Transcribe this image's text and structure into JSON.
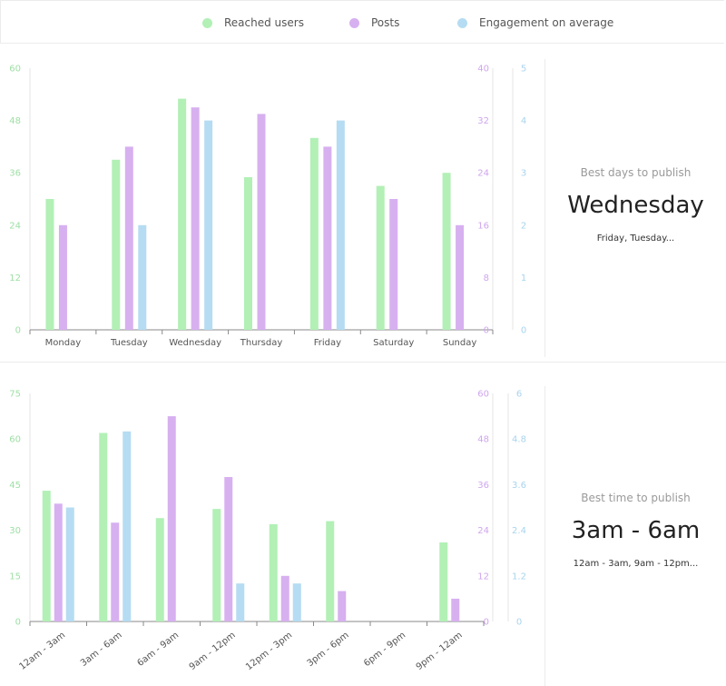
{
  "legend": [
    {
      "label": "Reached users",
      "color": "#b2f0b6"
    },
    {
      "label": "Posts",
      "color": "#d7b0f0"
    },
    {
      "label": "Engagement on average",
      "color": "#b5dcf2"
    }
  ],
  "best_days": {
    "label": "Best days to publish",
    "main": "Wednesday",
    "sub": "Friday, Tuesday..."
  },
  "best_time": {
    "label": "Best time to publish",
    "main": "3am - 6am",
    "sub": "12am - 3am, 9am - 12pm..."
  },
  "chart_data": [
    {
      "type": "bar",
      "categories": [
        "Monday",
        "Tuesday",
        "Wednesday",
        "Thursday",
        "Friday",
        "Saturday",
        "Sunday"
      ],
      "series": [
        {
          "name": "Reached users",
          "axis": "left",
          "color": "#b2f0b6",
          "values": [
            30,
            39,
            53,
            35,
            44,
            33,
            36
          ]
        },
        {
          "name": "Posts",
          "axis": "right1",
          "color": "#d7b0f0",
          "values": [
            16,
            28,
            34,
            33,
            28,
            20,
            16
          ]
        },
        {
          "name": "Engagement on average",
          "axis": "right2",
          "color": "#b5dcf2",
          "values": [
            0,
            2,
            4,
            0,
            4,
            0,
            0
          ]
        }
      ],
      "axes": {
        "left": {
          "min": 0,
          "max": 60,
          "ticks": [
            "0",
            "12",
            "24",
            "36",
            "48",
            "60"
          ],
          "color": "#9fe0a5"
        },
        "right1": {
          "min": 0,
          "max": 40,
          "ticks": [
            "0",
            "8",
            "16",
            "24",
            "32",
            "40"
          ],
          "color": "#cfa6ee"
        },
        "right2": {
          "min": 0,
          "max": 5,
          "ticks": [
            "0",
            "1",
            "2",
            "3",
            "4",
            "5"
          ],
          "color": "#a9d4ee"
        }
      },
      "legend_position": "top",
      "grid": false
    },
    {
      "type": "bar",
      "categories": [
        "12am - 3am",
        "3am - 6am",
        "6am - 9am",
        "9am - 12pm",
        "12pm - 3pm",
        "3pm - 6pm",
        "6pm - 9pm",
        "9pm - 12am"
      ],
      "series": [
        {
          "name": "Reached users",
          "axis": "left",
          "color": "#b2f0b6",
          "values": [
            43,
            62,
            34,
            37,
            32,
            33,
            0,
            26
          ]
        },
        {
          "name": "Posts",
          "axis": "right1",
          "color": "#d7b0f0",
          "values": [
            31,
            26,
            54,
            38,
            12,
            8,
            0,
            6
          ]
        },
        {
          "name": "Engagement on average",
          "axis": "right2",
          "color": "#b5dcf2",
          "values": [
            3,
            5,
            0,
            1,
            1,
            0,
            0,
            0
          ]
        }
      ],
      "axes": {
        "left": {
          "min": 0,
          "max": 75,
          "ticks": [
            "0",
            "15",
            "30",
            "45",
            "60",
            "75"
          ],
          "color": "#9fe0a5"
        },
        "right1": {
          "min": 0,
          "max": 60,
          "ticks": [
            "0",
            "12",
            "24",
            "36",
            "48",
            "60"
          ],
          "color": "#cfa6ee"
        },
        "right2": {
          "min": 0,
          "max": 6,
          "ticks": [
            "0",
            "1.2",
            "2.4",
            "3.6",
            "4.8",
            "6"
          ],
          "color": "#a9d4ee"
        }
      },
      "legend_position": "top",
      "grid": false
    }
  ]
}
